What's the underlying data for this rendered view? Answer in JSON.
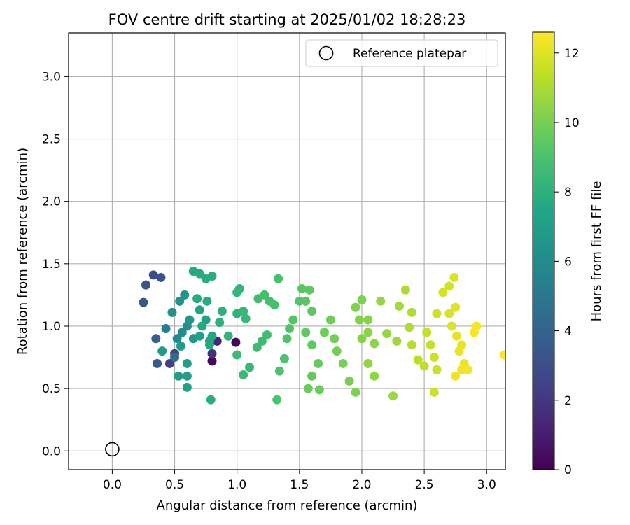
{
  "chart_data": {
    "type": "scatter",
    "title": "FOV centre drift starting at 2025/01/02 18:28:23",
    "xlabel": "Angular distance from reference (arcmin)",
    "ylabel": "Rotation from reference (arcmin)",
    "xlim": [
      -0.35,
      3.15
    ],
    "ylim": [
      -0.15,
      3.35
    ],
    "x_ticks": [
      "0.0",
      "0.5",
      "1.0",
      "1.5",
      "2.0",
      "2.5",
      "3.0"
    ],
    "y_ticks": [
      "0.0",
      "0.5",
      "1.0",
      "1.5",
      "2.0",
      "2.5",
      "3.0"
    ],
    "grid": true,
    "legend": {
      "position": "top-right",
      "entries": [
        "Reference platepar"
      ]
    },
    "reference_point": {
      "x": 0.0,
      "y": 0.0,
      "label": "Reference platepar"
    },
    "colorbar": {
      "label": "Hours from first FF file",
      "colormap": "viridis",
      "range": [
        0,
        12.6
      ],
      "ticks": [
        "0",
        "2",
        "4",
        "6",
        "8",
        "10",
        "12"
      ]
    },
    "points": [
      [
        0.8,
        0.72,
        0.3
      ],
      [
        0.99,
        0.87,
        0.2
      ],
      [
        0.84,
        0.88,
        1.3
      ],
      [
        0.8,
        0.78,
        1.8
      ],
      [
        0.46,
        0.7,
        2.3
      ],
      [
        0.5,
        0.78,
        2.5
      ],
      [
        0.33,
        1.41,
        3.0
      ],
      [
        0.39,
        1.39,
        3.2
      ],
      [
        0.27,
        1.33,
        3.3
      ],
      [
        0.25,
        1.19,
        3.4
      ],
      [
        0.36,
        0.7,
        3.6
      ],
      [
        0.35,
        0.9,
        3.9
      ],
      [
        0.5,
        0.75,
        4.5
      ],
      [
        0.43,
        0.98,
        5.5
      ],
      [
        0.52,
        0.9,
        6.0
      ],
      [
        0.56,
        0.95,
        6.1
      ],
      [
        0.6,
        1.0,
        6.2
      ],
      [
        0.48,
        1.11,
        6.3
      ],
      [
        0.54,
        1.2,
        6.4
      ],
      [
        0.58,
        1.25,
        6.5
      ],
      [
        0.62,
        1.05,
        6.6
      ],
      [
        0.65,
        0.9,
        6.7
      ],
      [
        0.4,
        0.8,
        6.8
      ],
      [
        0.55,
        0.84,
        6.9
      ],
      [
        0.6,
        0.7,
        7.0
      ],
      [
        0.53,
        0.6,
        7.0
      ],
      [
        0.6,
        0.6,
        7.1
      ],
      [
        0.6,
        0.51,
        7.2
      ],
      [
        0.7,
        0.92,
        7.1
      ],
      [
        0.75,
        1.05,
        7.2
      ],
      [
        0.7,
        1.13,
        7.3
      ],
      [
        0.78,
        0.88,
        7.4
      ],
      [
        0.8,
        0.92,
        7.5
      ],
      [
        0.78,
        0.85,
        7.6
      ],
      [
        0.72,
        1.0,
        7.6
      ],
      [
        0.68,
        1.22,
        7.7
      ],
      [
        0.76,
        1.2,
        7.7
      ],
      [
        0.75,
        1.38,
        7.8
      ],
      [
        0.8,
        1.4,
        7.8
      ],
      [
        0.65,
        1.44,
        7.6
      ],
      [
        0.7,
        1.42,
        7.7
      ],
      [
        0.79,
        0.41,
        7.9
      ],
      [
        0.88,
        1.12,
        8.0
      ],
      [
        0.86,
        1.03,
        8.0
      ],
      [
        0.93,
        0.92,
        8.1
      ],
      [
        1.0,
        1.1,
        8.1
      ],
      [
        1.02,
        1.3,
        8.2
      ],
      [
        1.0,
        1.27,
        8.3
      ],
      [
        1.05,
        1.12,
        8.3
      ],
      [
        1.07,
        1.06,
        8.4
      ],
      [
        1.1,
        0.67,
        8.4
      ],
      [
        1.0,
        0.77,
        8.5
      ],
      [
        1.05,
        0.61,
        8.5
      ],
      [
        1.16,
        0.83,
        8.6
      ],
      [
        1.2,
        0.88,
        8.6
      ],
      [
        1.24,
        0.93,
        8.7
      ],
      [
        1.17,
        1.22,
        8.7
      ],
      [
        1.22,
        1.25,
        8.8
      ],
      [
        1.26,
        1.2,
        8.8
      ],
      [
        1.3,
        1.17,
        8.9
      ],
      [
        1.33,
        1.38,
        8.9
      ],
      [
        1.32,
        0.41,
        9.0
      ],
      [
        1.34,
        0.64,
        9.0
      ],
      [
        1.38,
        0.74,
        9.0
      ],
      [
        1.4,
        0.9,
        9.1
      ],
      [
        1.42,
        0.98,
        9.1
      ],
      [
        1.45,
        1.05,
        9.2
      ],
      [
        1.5,
        1.2,
        9.2
      ],
      [
        1.52,
        1.3,
        9.3
      ],
      [
        1.55,
        1.2,
        9.3
      ],
      [
        1.58,
        1.29,
        9.4
      ],
      [
        1.6,
        1.12,
        9.4
      ],
      [
        1.55,
        0.95,
        9.5
      ],
      [
        1.6,
        0.85,
        9.5
      ],
      [
        1.65,
        0.7,
        9.6
      ],
      [
        1.6,
        0.6,
        9.6
      ],
      [
        1.57,
        0.5,
        9.7
      ],
      [
        1.66,
        0.49,
        9.7
      ],
      [
        1.7,
        0.95,
        9.8
      ],
      [
        1.75,
        1.05,
        9.8
      ],
      [
        1.78,
        0.9,
        9.9
      ],
      [
        1.8,
        0.8,
        9.9
      ],
      [
        1.85,
        0.7,
        10.0
      ],
      [
        1.9,
        0.56,
        10.0
      ],
      [
        1.95,
        0.47,
        10.1
      ],
      [
        2.0,
        1.21,
        10.1
      ],
      [
        1.95,
        1.15,
        10.2
      ],
      [
        1.98,
        1.05,
        10.2
      ],
      [
        2.05,
        1.05,
        10.3
      ],
      [
        2.0,
        0.9,
        10.3
      ],
      [
        2.05,
        0.95,
        10.4
      ],
      [
        2.1,
        0.86,
        10.4
      ],
      [
        2.05,
        0.7,
        10.5
      ],
      [
        2.1,
        0.6,
        10.5
      ],
      [
        2.15,
        1.2,
        10.6
      ],
      [
        2.2,
        0.94,
        10.6
      ],
      [
        2.25,
        0.44,
        10.7
      ],
      [
        2.28,
        0.88,
        10.8
      ],
      [
        2.3,
        1.16,
        10.9
      ],
      [
        2.35,
        1.29,
        11.0
      ],
      [
        2.4,
        1.11,
        11.1
      ],
      [
        2.38,
        0.99,
        11.1
      ],
      [
        2.4,
        0.85,
        11.2
      ],
      [
        2.45,
        0.73,
        11.3
      ],
      [
        2.5,
        0.68,
        11.4
      ],
      [
        2.52,
        0.95,
        11.5
      ],
      [
        2.55,
        0.85,
        11.5
      ],
      [
        2.58,
        0.75,
        11.6
      ],
      [
        2.6,
        0.65,
        11.6
      ],
      [
        2.58,
        0.47,
        11.7
      ],
      [
        2.6,
        1.1,
        11.7
      ],
      [
        2.65,
        1.27,
        11.8
      ],
      [
        2.7,
        1.32,
        11.8
      ],
      [
        2.74,
        1.39,
        11.9
      ],
      [
        2.7,
        1.1,
        11.9
      ],
      [
        2.75,
        1.15,
        12.0
      ],
      [
        2.72,
        1.0,
        12.0
      ],
      [
        2.76,
        0.92,
        12.1
      ],
      [
        2.8,
        0.85,
        12.1
      ],
      [
        2.78,
        0.8,
        12.2
      ],
      [
        2.82,
        0.7,
        12.2
      ],
      [
        2.8,
        0.65,
        12.3
      ],
      [
        2.75,
        0.6,
        12.3
      ],
      [
        2.85,
        0.65,
        12.4
      ],
      [
        2.9,
        0.95,
        12.4
      ],
      [
        2.92,
        1.0,
        12.5
      ],
      [
        3.14,
        0.77,
        12.6
      ]
    ]
  }
}
